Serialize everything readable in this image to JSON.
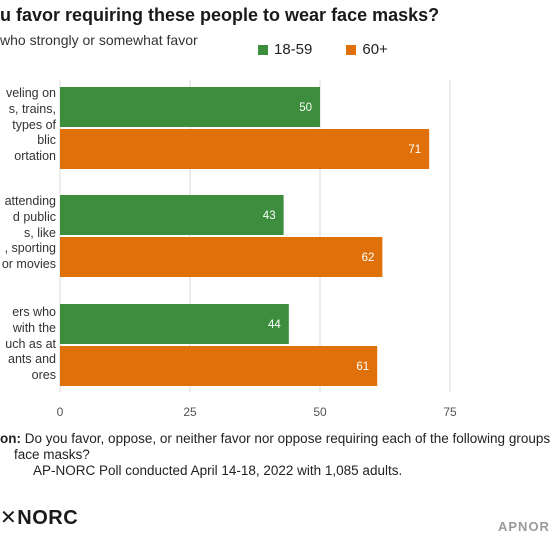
{
  "title": "u favor requiring these people to wear face masks?",
  "subtitle": "who strongly or somewhat favor",
  "legend": [
    {
      "label": "18-59",
      "color": "#3c8d3c"
    },
    {
      "label": "60+",
      "color": "#e0710a"
    }
  ],
  "category_labels": [
    [
      "veling on",
      "s, trains,",
      "types of",
      "blic",
      "ortation"
    ],
    [
      "attending",
      "d public",
      "s, like",
      ", sporting",
      "or movies"
    ],
    [
      "ers who",
      "with the",
      "uch as at",
      "ants and",
      "ores"
    ]
  ],
  "footer": {
    "question_label": "on:",
    "question_text": "Do you favor, oppose, or neither favor nor oppose requiring each of the following groups of",
    "question_text_2": "face masks?",
    "source_text": "AP-NORC Poll conducted April 14-18, 2022 with 1,085 adults."
  },
  "logo": "✕NORC",
  "brand": "APNORC",
  "chart_data": {
    "type": "bar",
    "orientation": "horizontal",
    "categories": [
      "Traveling on buses, trains, or other types of public transportation",
      "People attending crowded public events, like concerts, sporting events or movies",
      "Workers who interact with the public, such as at restaurants and stores"
    ],
    "series": [
      {
        "name": "18-59",
        "values": [
          50,
          43,
          44
        ],
        "color": "#3c8d3c"
      },
      {
        "name": "60+",
        "values": [
          71,
          62,
          61
        ],
        "color": "#e0710a"
      }
    ],
    "xticks": [
      0,
      25,
      50,
      75
    ],
    "xlim": [
      0,
      75
    ],
    "grid": true,
    "legend_position": "top",
    "data_labels": true
  }
}
